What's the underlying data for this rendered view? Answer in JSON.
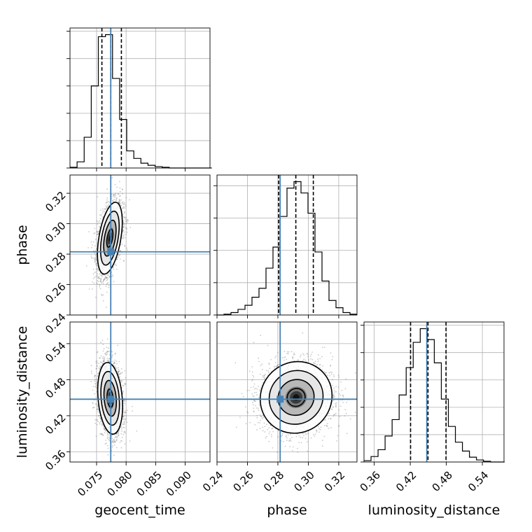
{
  "chart_data": {
    "type": "corner",
    "parameters": [
      "geocent_time",
      "phase",
      "luminosity_distance"
    ],
    "ranges": {
      "geocent_time": [
        0.0705,
        0.0942
      ],
      "phase": [
        0.24,
        0.332
      ],
      "luminosity_distance": [
        0.343,
        0.576
      ]
    },
    "ticks": {
      "geocent_time": [
        0.075,
        0.08,
        0.085,
        0.09
      ],
      "phase": [
        0.24,
        0.26,
        0.28,
        0.3,
        0.32
      ],
      "luminosity_distance": [
        0.36,
        0.42,
        0.48,
        0.54
      ]
    },
    "tick_labels": {
      "geocent_time": [
        "0.075",
        "0.080",
        "0.085",
        "0.090"
      ],
      "phase": [
        "0.24",
        "0.26",
        "0.28",
        "0.30",
        "0.32"
      ],
      "luminosity_distance": [
        "0.36",
        "0.42",
        "0.48",
        "0.54"
      ]
    },
    "truths": {
      "geocent_time": 0.0774,
      "phase": 0.2815,
      "luminosity_distance": 0.4475
    },
    "truth_color": "#4682b4",
    "quantiles": {
      "geocent_time": [
        0.0759,
        0.0774,
        0.0792
      ],
      "phase": [
        0.2805,
        0.2918,
        0.3033
      ],
      "luminosity_distance": [
        0.4205,
        0.4495,
        0.4795
      ]
    },
    "histograms": {
      "geocent_time": {
        "bin_edges": [
          0.0705,
          0.0717,
          0.0729,
          0.0741,
          0.0753,
          0.0765,
          0.0777,
          0.0789,
          0.0801,
          0.0813,
          0.0825,
          0.0837,
          0.0849,
          0.0861,
          0.0873,
          0.0885,
          0.0897,
          0.0909,
          0.0921,
          0.0933,
          0.0945
        ],
        "counts": [
          0.01,
          0.09,
          0.45,
          1.2,
          1.92,
          1.95,
          1.31,
          0.71,
          0.25,
          0.14,
          0.07,
          0.04,
          0.02,
          0.01,
          0,
          0,
          0,
          0,
          0,
          0
        ]
      },
      "phase": {
        "bin_edges": [
          0.24,
          0.2446,
          0.2492,
          0.2538,
          0.2584,
          0.263,
          0.2676,
          0.2722,
          0.2768,
          0.2814,
          0.286,
          0.2906,
          0.2952,
          0.2998,
          0.3044,
          0.309,
          0.3136,
          0.3182,
          0.3228,
          0.3274,
          0.332
        ],
        "counts": [
          0,
          0.01,
          0.03,
          0.07,
          0.12,
          0.22,
          0.33,
          0.58,
          0.84,
          1.22,
          1.57,
          1.65,
          1.51,
          1.26,
          0.78,
          0.42,
          0.18,
          0.09,
          0.03,
          0.01
        ]
      },
      "luminosity_distance": {
        "bin_edges": [
          0.343,
          0.3547,
          0.3664,
          0.3781,
          0.3898,
          0.4015,
          0.4132,
          0.4249,
          0.4366,
          0.4483,
          0.46,
          0.4717,
          0.4834,
          0.4951,
          0.5068,
          0.5185,
          0.5302,
          0.5419,
          0.5536,
          0.5653,
          0.577
        ],
        "counts": [
          0.02,
          0.08,
          0.18,
          0.38,
          0.62,
          0.98,
          1.38,
          1.75,
          1.95,
          1.79,
          1.45,
          0.92,
          0.52,
          0.29,
          0.16,
          0.07,
          0.03,
          0.01,
          0,
          0
        ]
      }
    },
    "posterior_2d": {
      "phase_vs_geocent_time": {
        "center": [
          0.07725,
          0.2905
        ],
        "sigma": [
          0.00105,
          0.0118
        ],
        "correlation": 0.45,
        "peak": [
          0.0771,
          0.2925
        ]
      },
      "luminosity_distance_vs_geocent_time": {
        "center": [
          0.0773,
          0.449
        ],
        "sigma": [
          0.00105,
          0.0298
        ],
        "correlation": -0.22,
        "peak": [
          0.0768,
          0.452
        ]
      },
      "luminosity_distance_vs_phase": {
        "center": [
          0.292,
          0.4505
        ],
        "sigma": [
          0.0118,
          0.0298
        ],
        "correlation": 0.05,
        "peak": [
          0.2935,
          0.451
        ]
      }
    },
    "contour_levels_sigma": [
      0.5,
      1.0,
      1.5,
      2.0
    ],
    "grid": true
  }
}
